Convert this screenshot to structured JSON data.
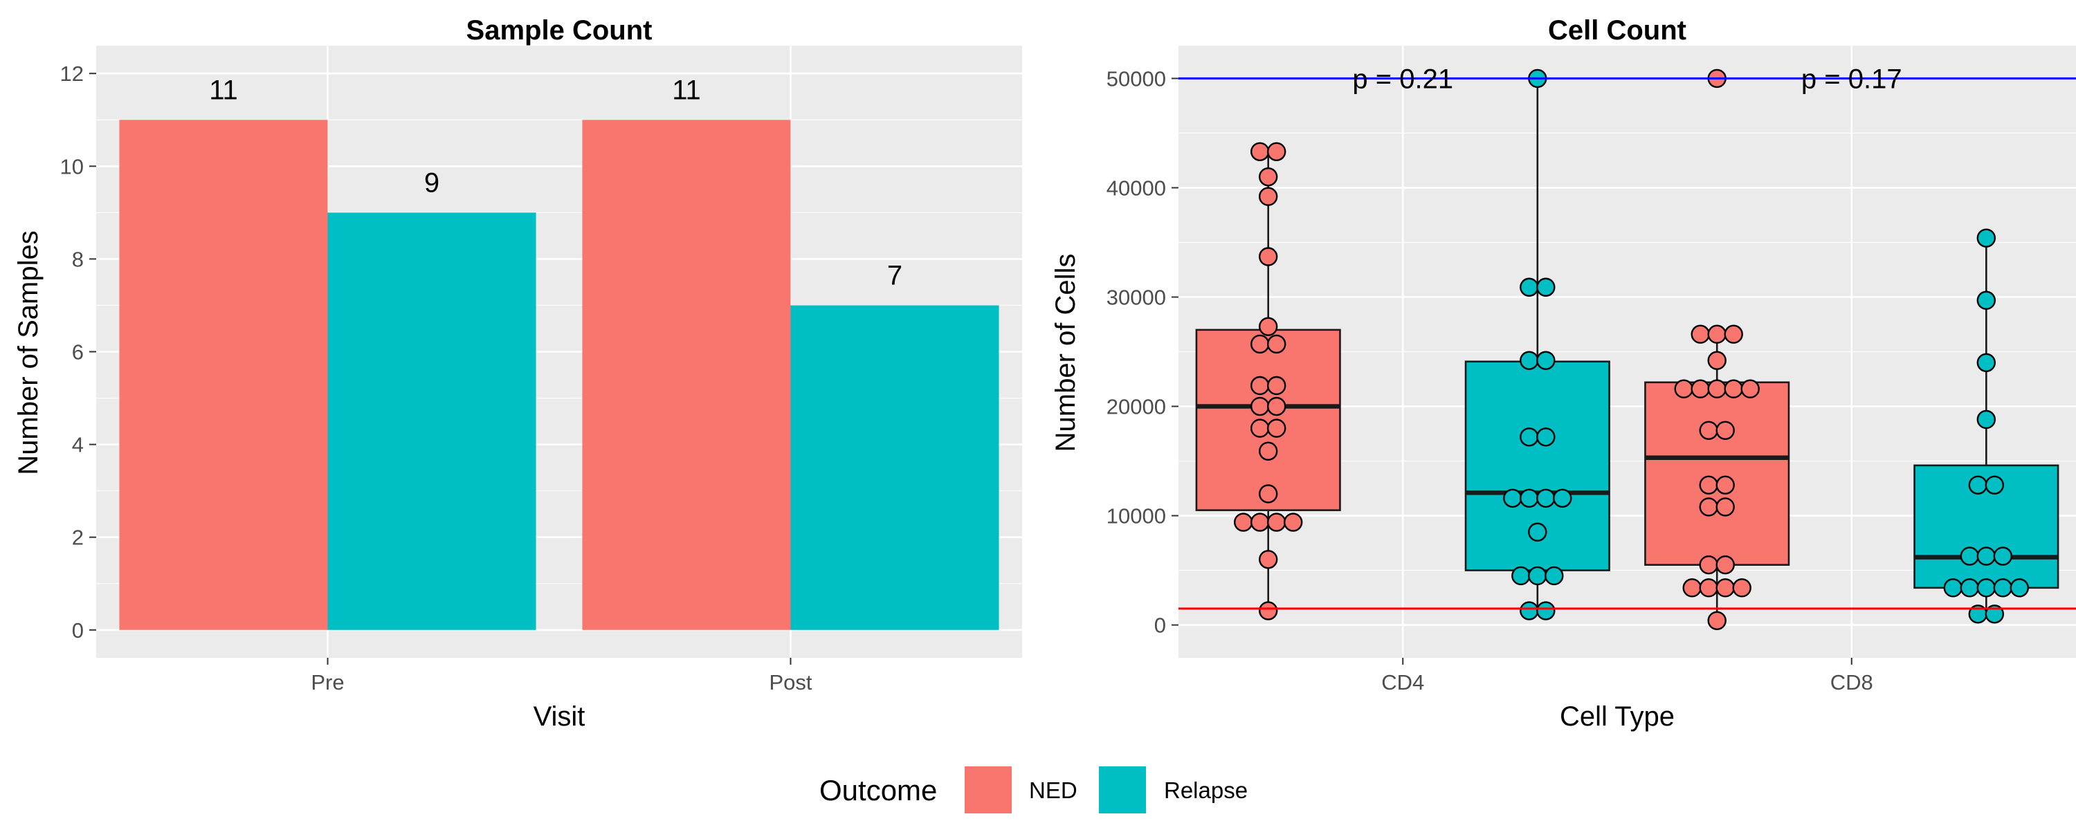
{
  "legend": {
    "title": "Outcome",
    "position": "bottom",
    "items": [
      {
        "label": "NED",
        "color": "#F8766D"
      },
      {
        "label": "Relapse",
        "color": "#00BFC4"
      }
    ]
  },
  "chart_data": [
    {
      "type": "bar",
      "title": "Sample Count",
      "xlabel": "Visit",
      "ylabel": "Number of Samples",
      "categories": [
        "Pre",
        "Post"
      ],
      "series": [
        {
          "name": "NED",
          "values": [
            11,
            11
          ]
        },
        {
          "name": "Relapse",
          "values": [
            9,
            7
          ]
        }
      ],
      "data_labels": [
        [
          "11",
          "9"
        ],
        [
          "11",
          "7"
        ]
      ],
      "ylim": [
        -0.6,
        12.6
      ],
      "yticks": [
        0,
        2,
        4,
        6,
        8,
        10,
        12
      ],
      "ytick_labels": [
        "0",
        "2",
        "4",
        "6",
        "8",
        "10",
        "12"
      ],
      "grid": true
    },
    {
      "type": "box",
      "title": "Cell Count",
      "xlabel": "Cell Type",
      "ylabel": "Number of Cells",
      "categories": [
        "CD4",
        "CD8"
      ],
      "ylim": [
        -3000,
        53000
      ],
      "yticks": [
        0,
        10000,
        20000,
        30000,
        40000,
        50000
      ],
      "ytick_labels": [
        "0",
        "10000",
        "20000",
        "30000",
        "40000",
        "50000"
      ],
      "grid": true,
      "reference_lines": [
        {
          "y": 50000,
          "color": "#0000FF"
        },
        {
          "y": 1500,
          "color": "#FF0000"
        }
      ],
      "annotations": [
        {
          "category": "CD4",
          "text": "p = 0.21",
          "y": 50000
        },
        {
          "category": "CD8",
          "text": "p = 0.17",
          "y": 50000
        }
      ],
      "boxes": [
        {
          "category": "CD4",
          "group": "NED",
          "min": 1300,
          "q1": 10500,
          "median": 20000,
          "q3": 27000,
          "max": 43300,
          "points": [
            43300,
            43300,
            41000,
            39200,
            33700,
            27300,
            25700,
            25700,
            21900,
            21900,
            20000,
            20000,
            18000,
            18000,
            15900,
            12000,
            9400,
            9400,
            9400,
            9400,
            6000,
            1300
          ]
        },
        {
          "category": "CD4",
          "group": "Relapse",
          "min": 1300,
          "q1": 5000,
          "median": 12100,
          "q3": 24100,
          "max": 50000,
          "points": [
            50000,
            30900,
            30900,
            24200,
            24200,
            17200,
            17200,
            11600,
            11600,
            11600,
            11600,
            8500,
            4500,
            4500,
            4500,
            1300,
            1300
          ]
        },
        {
          "category": "CD8",
          "group": "NED",
          "min": 400,
          "q1": 5500,
          "median": 15300,
          "q3": 22200,
          "max": 26600,
          "points": [
            50000,
            26600,
            26600,
            26600,
            24200,
            21600,
            21600,
            21600,
            21600,
            21600,
            17800,
            17800,
            12800,
            12800,
            10800,
            10800,
            5500,
            5500,
            3400,
            3400,
            3400,
            3400,
            400
          ]
        },
        {
          "category": "CD8",
          "group": "Relapse",
          "min": 1000,
          "q1": 3400,
          "median": 6200,
          "q3": 14600,
          "max": 35400,
          "points": [
            35400,
            29700,
            24000,
            18800,
            12800,
            12800,
            6300,
            6300,
            6300,
            3400,
            3400,
            3400,
            3400,
            3400,
            1000,
            1000
          ]
        }
      ]
    }
  ]
}
